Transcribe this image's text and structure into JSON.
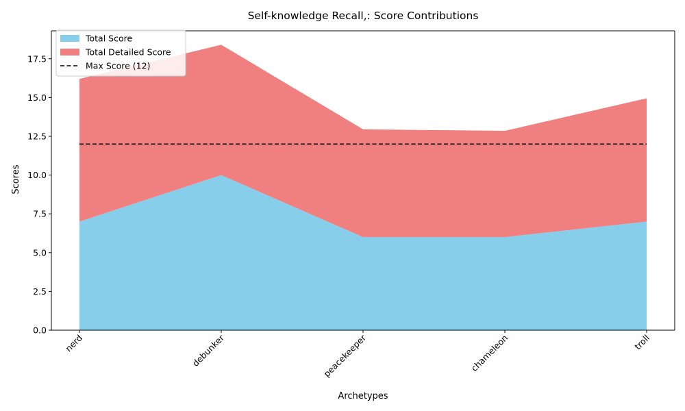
{
  "chart_data": {
    "type": "area",
    "title": "Self-knowledge Recall,: Score Contributions",
    "xlabel": "Archetypes",
    "ylabel": "Scores",
    "categories": [
      "nerd",
      "debunker",
      "peacekeeper",
      "chameleon",
      "troll"
    ],
    "series": [
      {
        "name": "Total Score",
        "values": [
          7,
          10,
          6,
          6,
          7
        ],
        "color": "#87CEEB",
        "stacked": true
      },
      {
        "name": "Total Detailed Score",
        "values": [
          9.2,
          8.4,
          6.95,
          6.85,
          7.95
        ],
        "color": "#F08080",
        "stacked": true
      }
    ],
    "reference_line": {
      "name": "Max Score (12)",
      "value": 12,
      "color": "#000000",
      "style": "dashed"
    },
    "ylim": [
      0,
      19.3
    ],
    "yticks": [
      0.0,
      2.5,
      5.0,
      7.5,
      10.0,
      12.5,
      15.0,
      17.5
    ],
    "ytick_labels": [
      "0.0",
      "2.5",
      "5.0",
      "7.5",
      "10.0",
      "12.5",
      "15.0",
      "17.5"
    ],
    "grid": false,
    "legend_position": "top-left",
    "xtick_rotation": 45
  }
}
